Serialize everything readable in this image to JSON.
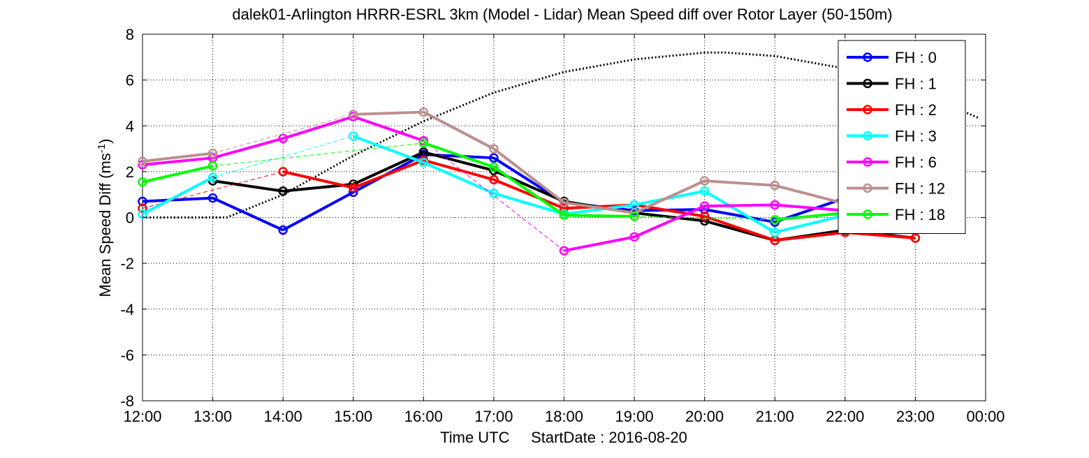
{
  "chart_data": {
    "type": "line",
    "title": "dalek01-Arlington HRRR-ESRL 3km (Model - Lidar) Mean Speed diff over Rotor Layer (50-150m)",
    "xlabel": "Time UTC     StartDate : 2016-08-20",
    "ylabel_main": "Mean Speed Diff (ms",
    "ylabel_sup": "-1",
    "ylabel_close": ")",
    "ylim": [
      -8,
      8
    ],
    "yticks": [
      "-8",
      "-6",
      "-4",
      "-2",
      "0",
      "2",
      "4",
      "6",
      "8"
    ],
    "x_tick_labels": [
      "12:00",
      "13:00",
      "14:00",
      "15:00",
      "16:00",
      "17:00",
      "18:00",
      "19:00",
      "20:00",
      "21:00",
      "22:00",
      "23:00",
      "00:00"
    ],
    "xlim_hours": [
      12,
      24
    ],
    "grid": true,
    "legend_position": "top-right",
    "series": [
      {
        "name": "FH : 0",
        "color": "#0000ff",
        "points": [
          [
            12,
            0.7
          ],
          [
            13,
            0.85
          ],
          [
            14,
            -0.55
          ],
          [
            15,
            1.1
          ],
          [
            16,
            2.75
          ],
          [
            17,
            2.6
          ],
          [
            18,
            0.65
          ],
          [
            19,
            0.3
          ],
          [
            20,
            0.35
          ],
          [
            21,
            -0.2
          ],
          [
            22,
            0.85
          ]
        ]
      },
      {
        "name": "FH : 1",
        "color": "#000000",
        "points": [
          [
            13,
            1.6
          ],
          [
            14,
            1.15
          ],
          [
            15,
            1.45
          ],
          [
            16,
            2.85
          ],
          [
            17,
            2.05
          ],
          [
            18,
            0.7
          ],
          [
            19,
            0.2
          ],
          [
            20,
            -0.15
          ],
          [
            21,
            -1.0
          ],
          [
            22,
            -0.55
          ],
          [
            23,
            -0.9
          ]
        ]
      },
      {
        "name": "FH : 2",
        "color": "#ff0000",
        "points": [
          [
            12,
            0.4
          ],
          [
            14,
            2.0
          ],
          [
            15,
            1.3
          ],
          [
            16,
            2.5
          ],
          [
            17,
            1.65
          ],
          [
            18,
            0.4
          ],
          [
            19,
            0.55
          ],
          [
            20,
            0.05
          ],
          [
            21,
            -1.0
          ],
          [
            22,
            -0.65
          ],
          [
            23,
            -0.9
          ]
        ]
      },
      {
        "name": "FH : 3",
        "color": "#00ffff",
        "points": [
          [
            12,
            0.15
          ],
          [
            13,
            1.75
          ],
          [
            15,
            3.55
          ],
          [
            16,
            2.4
          ],
          [
            17,
            1.05
          ],
          [
            18,
            0.15
          ],
          [
            19,
            0.55
          ],
          [
            20,
            1.15
          ],
          [
            21,
            -0.65
          ],
          [
            22,
            0.1
          ]
        ]
      },
      {
        "name": "FH : 6",
        "color": "#ff00ff",
        "points": [
          [
            12,
            2.3
          ],
          [
            13,
            2.6
          ],
          [
            14,
            3.45
          ],
          [
            15,
            4.4
          ],
          [
            16,
            3.35
          ],
          [
            18,
            -1.45
          ],
          [
            19,
            -0.85
          ],
          [
            20,
            0.5
          ],
          [
            21,
            0.55
          ],
          [
            22,
            0.3
          ]
        ]
      },
      {
        "name": "FH : 12",
        "color": "#bc8f8f",
        "points": [
          [
            12,
            2.45
          ],
          [
            13,
            2.8
          ],
          [
            15,
            4.5
          ],
          [
            16,
            4.6
          ],
          [
            17,
            3.0
          ],
          [
            18,
            0.65
          ],
          [
            19,
            0.2
          ],
          [
            20,
            1.6
          ],
          [
            21,
            1.4
          ],
          [
            22,
            0.6
          ]
        ]
      },
      {
        "name": "FH : 18",
        "color": "#00ff00",
        "points": [
          [
            12,
            1.55
          ],
          [
            13,
            2.25
          ],
          [
            16,
            3.25
          ],
          [
            17,
            2.2
          ],
          [
            18,
            0.1
          ],
          [
            19,
            0.05
          ],
          [
            21,
            -0.1
          ],
          [
            22,
            0.2
          ]
        ]
      }
    ],
    "dotted_reference_curve": {
      "color": "#000000",
      "points": [
        [
          12,
          0.0
        ],
        [
          13,
          0.0
        ],
        [
          13.2,
          0.0
        ],
        [
          14,
          1.0
        ],
        [
          15,
          2.7
        ],
        [
          16,
          4.2
        ],
        [
          17,
          5.45
        ],
        [
          18,
          6.35
        ],
        [
          19,
          6.9
        ],
        [
          20,
          7.2
        ],
        [
          20.3,
          7.2
        ],
        [
          21,
          7.05
        ],
        [
          22,
          6.5
        ],
        [
          23,
          5.5
        ],
        [
          23.9,
          4.35
        ]
      ]
    }
  }
}
